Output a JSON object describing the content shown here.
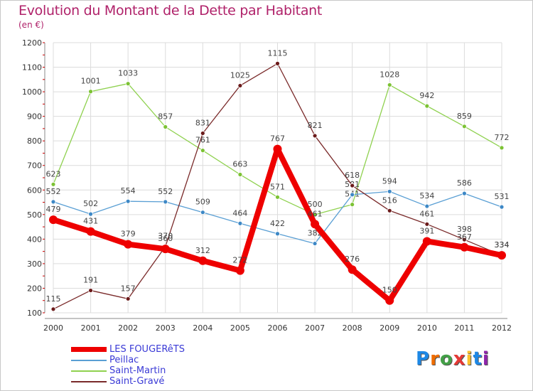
{
  "title": "Evolution du Montant de la Dette par Habitant",
  "subtitle": "(en €)",
  "logo_text": "Proxiti",
  "chart_data": {
    "type": "line",
    "x": [
      "2000",
      "2001",
      "2002",
      "2003",
      "2004",
      "2005",
      "2006",
      "2007",
      "2008",
      "2009",
      "2010",
      "2011",
      "2012"
    ],
    "ylim": [
      100,
      1200
    ],
    "yticks": [
      100,
      200,
      300,
      400,
      500,
      600,
      700,
      800,
      900,
      1000,
      1100,
      1200
    ],
    "grid": true,
    "legend_position": "bottom-left",
    "series": [
      {
        "name": "Saint-Martin",
        "color": "#8fd14f",
        "dot": "#7cc234",
        "width": 1.3,
        "values": [
          623,
          1001,
          1033,
          857,
          761,
          663,
          571,
          500,
          541,
          1028,
          942,
          859,
          772
        ]
      },
      {
        "name": "Peillac",
        "color": "#5a9fd4",
        "dot": "#3d88c6",
        "width": 1.3,
        "values": [
          552,
          502,
          554,
          552,
          509,
          464,
          422,
          382,
          581,
          594,
          534,
          586,
          531
        ]
      },
      {
        "name": "Saint-Gravé",
        "color": "#7a2a2a",
        "dot": "#6b1a1a",
        "width": 1.3,
        "values": [
          115,
          191,
          157,
          370,
          831,
          1025,
          1115,
          821,
          618,
          516,
          461,
          398,
          334
        ]
      },
      {
        "name": "LES FOUGERêTS",
        "color": "#ee0000",
        "dot": "#ee0000",
        "width": 8,
        "values": [
          479,
          431,
          379,
          360,
          312,
          272,
          767,
          461,
          276,
          150,
          391,
          367,
          334
        ]
      }
    ],
    "legend_order": [
      "LES FOUGERêTS",
      "Peillac",
      "Saint-Martin",
      "Saint-Gravé"
    ],
    "legend_colors": [
      "#ee0000",
      "#5a9fd4",
      "#8fd14f",
      "#7a2a2a"
    ]
  }
}
